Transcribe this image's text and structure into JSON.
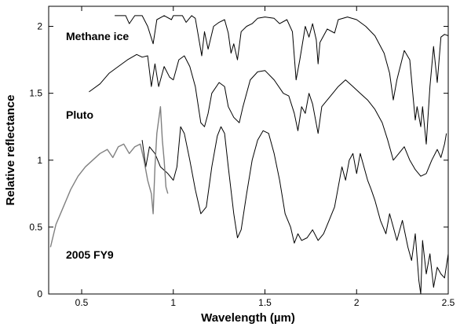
{
  "chart_data": {
    "type": "line",
    "xlabel": "Wavelength (µm)",
    "ylabel": "Relative reflectance",
    "xlim": [
      0.32,
      2.5
    ],
    "ylim": [
      0,
      2.15
    ],
    "x_ticks": [
      0.5,
      1,
      1.5,
      2,
      2.5
    ],
    "x_tick_labels": [
      "0.5",
      "1",
      "1.5",
      "2",
      "2.5"
    ],
    "y_ticks": [
      0,
      0.5,
      1,
      1.5,
      2
    ],
    "y_tick_labels": [
      "0",
      "0.5",
      "1",
      "1.5",
      "2"
    ],
    "grid": false,
    "legend": "none",
    "series": [
      {
        "name": "Methane ice",
        "color": "#000000",
        "points": [
          [
            0.68,
            2.08
          ],
          [
            0.74,
            2.08
          ],
          [
            0.76,
            2.02
          ],
          [
            0.79,
            2.08
          ],
          [
            0.83,
            2.08
          ],
          [
            0.86,
            2.0
          ],
          [
            0.89,
            1.87
          ],
          [
            0.91,
            2.05
          ],
          [
            0.95,
            2.08
          ],
          [
            0.99,
            2.05
          ],
          [
            1.0,
            2.08
          ],
          [
            1.05,
            2.08
          ],
          [
            1.07,
            2.03
          ],
          [
            1.1,
            2.08
          ],
          [
            1.12,
            2.06
          ],
          [
            1.14,
            1.9
          ],
          [
            1.155,
            1.78
          ],
          [
            1.17,
            1.96
          ],
          [
            1.19,
            1.83
          ],
          [
            1.22,
            2.0
          ],
          [
            1.25,
            2.03
          ],
          [
            1.28,
            2.05
          ],
          [
            1.3,
            1.95
          ],
          [
            1.315,
            1.8
          ],
          [
            1.33,
            1.87
          ],
          [
            1.35,
            1.75
          ],
          [
            1.37,
            1.96
          ],
          [
            1.4,
            2.0
          ],
          [
            1.43,
            2.02
          ],
          [
            1.46,
            2.06
          ],
          [
            1.5,
            2.07
          ],
          [
            1.55,
            2.06
          ],
          [
            1.58,
            2.02
          ],
          [
            1.62,
            2.05
          ],
          [
            1.65,
            1.96
          ],
          [
            1.67,
            1.6
          ],
          [
            1.69,
            1.75
          ],
          [
            1.72,
            2.0
          ],
          [
            1.74,
            1.92
          ],
          [
            1.76,
            2.02
          ],
          [
            1.78,
            1.9
          ],
          [
            1.79,
            1.72
          ],
          [
            1.8,
            1.88
          ],
          [
            1.84,
            1.98
          ],
          [
            1.88,
            1.95
          ],
          [
            1.9,
            2.05
          ],
          [
            1.95,
            2.07
          ],
          [
            2.0,
            2.05
          ],
          [
            2.05,
            2.0
          ],
          [
            2.1,
            1.93
          ],
          [
            2.15,
            1.8
          ],
          [
            2.18,
            1.65
          ],
          [
            2.2,
            1.45
          ],
          [
            2.22,
            1.6
          ],
          [
            2.26,
            1.82
          ],
          [
            2.29,
            1.75
          ],
          [
            2.31,
            1.45
          ],
          [
            2.32,
            1.3
          ],
          [
            2.33,
            1.4
          ],
          [
            2.35,
            1.25
          ],
          [
            2.36,
            1.4
          ],
          [
            2.38,
            1.12
          ],
          [
            2.4,
            1.55
          ],
          [
            2.42,
            1.85
          ],
          [
            2.44,
            1.58
          ],
          [
            2.46,
            1.92
          ],
          [
            2.48,
            1.94
          ],
          [
            2.5,
            1.93
          ]
        ]
      },
      {
        "name": "Pluto",
        "color": "#000000",
        "points": [
          [
            0.54,
            1.51
          ],
          [
            0.6,
            1.57
          ],
          [
            0.65,
            1.65
          ],
          [
            0.7,
            1.7
          ],
          [
            0.75,
            1.75
          ],
          [
            0.8,
            1.79
          ],
          [
            0.83,
            1.77
          ],
          [
            0.86,
            1.78
          ],
          [
            0.88,
            1.55
          ],
          [
            0.9,
            1.72
          ],
          [
            0.92,
            1.55
          ],
          [
            0.95,
            1.7
          ],
          [
            0.98,
            1.62
          ],
          [
            1.0,
            1.6
          ],
          [
            1.03,
            1.75
          ],
          [
            1.06,
            1.78
          ],
          [
            1.09,
            1.7
          ],
          [
            1.12,
            1.55
          ],
          [
            1.15,
            1.28
          ],
          [
            1.17,
            1.25
          ],
          [
            1.19,
            1.35
          ],
          [
            1.21,
            1.5
          ],
          [
            1.25,
            1.58
          ],
          [
            1.28,
            1.55
          ],
          [
            1.3,
            1.4
          ],
          [
            1.33,
            1.32
          ],
          [
            1.36,
            1.28
          ],
          [
            1.38,
            1.4
          ],
          [
            1.42,
            1.6
          ],
          [
            1.46,
            1.66
          ],
          [
            1.5,
            1.67
          ],
          [
            1.55,
            1.6
          ],
          [
            1.6,
            1.5
          ],
          [
            1.63,
            1.48
          ],
          [
            1.66,
            1.35
          ],
          [
            1.68,
            1.22
          ],
          [
            1.7,
            1.4
          ],
          [
            1.72,
            1.35
          ],
          [
            1.74,
            1.5
          ],
          [
            1.76,
            1.42
          ],
          [
            1.79,
            1.2
          ],
          [
            1.81,
            1.4
          ],
          [
            1.84,
            1.45
          ],
          [
            1.87,
            1.5
          ],
          [
            1.9,
            1.55
          ],
          [
            1.94,
            1.6
          ],
          [
            1.98,
            1.55
          ],
          [
            2.02,
            1.5
          ],
          [
            2.06,
            1.45
          ],
          [
            2.1,
            1.38
          ],
          [
            2.14,
            1.28
          ],
          [
            2.17,
            1.15
          ],
          [
            2.2,
            1.0
          ],
          [
            2.23,
            1.05
          ],
          [
            2.26,
            1.1
          ],
          [
            2.29,
            1.0
          ],
          [
            2.32,
            0.93
          ],
          [
            2.35,
            0.88
          ],
          [
            2.38,
            0.9
          ],
          [
            2.41,
            1.0
          ],
          [
            2.44,
            1.08
          ],
          [
            2.46,
            1.02
          ],
          [
            2.48,
            1.12
          ],
          [
            2.49,
            1.2
          ]
        ]
      },
      {
        "name": "2005 FY9",
        "color": "#000000",
        "points": [
          [
            0.83,
            1.15
          ],
          [
            0.85,
            0.95
          ],
          [
            0.87,
            1.1
          ],
          [
            0.9,
            1.05
          ],
          [
            0.93,
            0.95
          ],
          [
            0.97,
            0.9
          ],
          [
            1.0,
            0.85
          ],
          [
            1.02,
            0.95
          ],
          [
            1.04,
            1.25
          ],
          [
            1.06,
            1.2
          ],
          [
            1.09,
            1.0
          ],
          [
            1.12,
            0.78
          ],
          [
            1.15,
            0.6
          ],
          [
            1.18,
            0.65
          ],
          [
            1.21,
            0.95
          ],
          [
            1.24,
            1.18
          ],
          [
            1.26,
            1.25
          ],
          [
            1.28,
            1.2
          ],
          [
            1.3,
            0.95
          ],
          [
            1.33,
            0.6
          ],
          [
            1.35,
            0.42
          ],
          [
            1.37,
            0.48
          ],
          [
            1.4,
            0.75
          ],
          [
            1.43,
            1.0
          ],
          [
            1.46,
            1.15
          ],
          [
            1.49,
            1.22
          ],
          [
            1.52,
            1.2
          ],
          [
            1.55,
            1.05
          ],
          [
            1.58,
            0.85
          ],
          [
            1.61,
            0.6
          ],
          [
            1.64,
            0.5
          ],
          [
            1.66,
            0.38
          ],
          [
            1.68,
            0.45
          ],
          [
            1.7,
            0.4
          ],
          [
            1.73,
            0.42
          ],
          [
            1.76,
            0.48
          ],
          [
            1.79,
            0.4
          ],
          [
            1.82,
            0.45
          ],
          [
            1.85,
            0.55
          ],
          [
            1.88,
            0.65
          ],
          [
            1.9,
            0.8
          ],
          [
            1.92,
            0.95
          ],
          [
            1.94,
            0.85
          ],
          [
            1.96,
            1.0
          ],
          [
            1.98,
            1.05
          ],
          [
            2.0,
            0.9
          ],
          [
            2.02,
            1.05
          ],
          [
            2.04,
            0.95
          ],
          [
            2.06,
            0.85
          ],
          [
            2.08,
            0.78
          ],
          [
            2.1,
            0.7
          ],
          [
            2.13,
            0.55
          ],
          [
            2.16,
            0.45
          ],
          [
            2.18,
            0.6
          ],
          [
            2.2,
            0.5
          ],
          [
            2.22,
            0.4
          ],
          [
            2.25,
            0.55
          ],
          [
            2.28,
            0.35
          ],
          [
            2.3,
            0.25
          ],
          [
            2.32,
            0.45
          ],
          [
            2.34,
            0.1
          ],
          [
            2.35,
            0.0
          ],
          [
            2.36,
            0.4
          ],
          [
            2.38,
            0.15
          ],
          [
            2.4,
            0.3
          ],
          [
            2.42,
            0.05
          ],
          [
            2.44,
            0.2
          ],
          [
            2.46,
            0.15
          ],
          [
            2.48,
            0.12
          ],
          [
            2.5,
            0.3
          ]
        ]
      },
      {
        "name": "2005 FY9 (visible)",
        "color": "#808080",
        "points": [
          [
            0.33,
            0.35
          ],
          [
            0.36,
            0.52
          ],
          [
            0.4,
            0.65
          ],
          [
            0.44,
            0.78
          ],
          [
            0.48,
            0.88
          ],
          [
            0.52,
            0.95
          ],
          [
            0.56,
            1.0
          ],
          [
            0.6,
            1.05
          ],
          [
            0.64,
            1.08
          ],
          [
            0.67,
            1.02
          ],
          [
            0.7,
            1.1
          ],
          [
            0.73,
            1.12
          ],
          [
            0.76,
            1.05
          ],
          [
            0.79,
            1.1
          ],
          [
            0.82,
            1.12
          ],
          [
            0.84,
            1.0
          ],
          [
            0.86,
            0.85
          ],
          [
            0.88,
            0.75
          ],
          [
            0.89,
            0.6
          ],
          [
            0.9,
            0.95
          ],
          [
            0.91,
            1.2
          ],
          [
            0.92,
            1.3
          ],
          [
            0.93,
            1.4
          ],
          [
            0.94,
            1.15
          ],
          [
            0.95,
            1.0
          ],
          [
            0.96,
            0.8
          ],
          [
            0.97,
            0.75
          ]
        ]
      }
    ],
    "annotations": [
      "Methane ice",
      "Pluto",
      "2005 FY9"
    ]
  }
}
